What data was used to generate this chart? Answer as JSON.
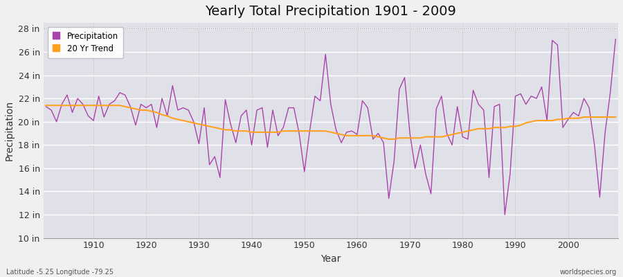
{
  "title": "Yearly Total Precipitation 1901 - 2009",
  "xlabel": "Year",
  "ylabel": "Precipitation",
  "years": [
    1901,
    1902,
    1903,
    1904,
    1905,
    1906,
    1907,
    1908,
    1909,
    1910,
    1911,
    1912,
    1913,
    1914,
    1915,
    1916,
    1917,
    1918,
    1919,
    1920,
    1921,
    1922,
    1923,
    1924,
    1925,
    1926,
    1927,
    1928,
    1929,
    1930,
    1931,
    1932,
    1933,
    1934,
    1935,
    1936,
    1937,
    1938,
    1939,
    1940,
    1941,
    1942,
    1943,
    1944,
    1945,
    1946,
    1947,
    1948,
    1949,
    1950,
    1951,
    1952,
    1953,
    1954,
    1955,
    1956,
    1957,
    1958,
    1959,
    1960,
    1961,
    1962,
    1963,
    1964,
    1965,
    1966,
    1967,
    1968,
    1969,
    1970,
    1971,
    1972,
    1973,
    1974,
    1975,
    1976,
    1977,
    1978,
    1979,
    1980,
    1981,
    1982,
    1983,
    1984,
    1985,
    1986,
    1987,
    1988,
    1989,
    1990,
    1991,
    1992,
    1993,
    1994,
    1995,
    1996,
    1997,
    1998,
    1999,
    2000,
    2001,
    2002,
    2003,
    2004,
    2005,
    2006,
    2007,
    2008,
    2009
  ],
  "precip": [
    21.3,
    21.0,
    20.0,
    21.5,
    22.3,
    20.8,
    22.0,
    21.5,
    20.5,
    20.1,
    22.2,
    20.4,
    21.5,
    21.8,
    22.5,
    22.3,
    21.3,
    19.7,
    21.5,
    21.2,
    21.5,
    19.5,
    22.0,
    20.5,
    23.1,
    21.0,
    21.2,
    21.0,
    20.0,
    18.1,
    21.2,
    16.3,
    17.0,
    15.2,
    21.9,
    19.8,
    18.2,
    20.5,
    21.0,
    18.0,
    21.0,
    21.2,
    17.8,
    21.0,
    18.8,
    19.5,
    21.2,
    21.2,
    19.0,
    15.7,
    19.2,
    22.2,
    21.8,
    25.8,
    21.5,
    19.3,
    18.2,
    19.1,
    19.2,
    18.9,
    21.8,
    21.2,
    18.5,
    19.0,
    18.2,
    13.4,
    16.6,
    22.8,
    23.8,
    19.0,
    16.0,
    18.0,
    15.5,
    13.8,
    21.1,
    22.2,
    19.0,
    18.0,
    21.3,
    18.7,
    18.5,
    22.7,
    21.5,
    21.0,
    15.2,
    21.3,
    21.5,
    12.0,
    15.5,
    22.2,
    22.4,
    21.5,
    22.2,
    22.0,
    23.0,
    20.1,
    27.0,
    26.6,
    19.5,
    20.2,
    20.8,
    20.5,
    22.0,
    21.2,
    18.0,
    13.5,
    19.0,
    22.5,
    27.1
  ],
  "trend": [
    21.4,
    21.4,
    21.4,
    21.4,
    21.4,
    21.4,
    21.4,
    21.4,
    21.4,
    21.4,
    21.4,
    21.4,
    21.4,
    21.4,
    21.4,
    21.3,
    21.2,
    21.1,
    21.0,
    21.0,
    20.9,
    20.8,
    20.6,
    20.5,
    20.3,
    20.2,
    20.1,
    20.0,
    19.9,
    19.8,
    19.7,
    19.6,
    19.5,
    19.4,
    19.3,
    19.3,
    19.2,
    19.2,
    19.2,
    19.1,
    19.1,
    19.1,
    19.1,
    19.1,
    19.1,
    19.2,
    19.2,
    19.2,
    19.2,
    19.2,
    19.2,
    19.2,
    19.2,
    19.2,
    19.1,
    19.0,
    18.9,
    18.8,
    18.8,
    18.8,
    18.8,
    18.8,
    18.8,
    18.7,
    18.6,
    18.5,
    18.5,
    18.6,
    18.6,
    18.6,
    18.6,
    18.6,
    18.7,
    18.7,
    18.7,
    18.7,
    18.8,
    18.9,
    19.0,
    19.1,
    19.2,
    19.3,
    19.4,
    19.4,
    19.4,
    19.5,
    19.5,
    19.5,
    19.6,
    19.6,
    19.7,
    19.9,
    20.0,
    20.1,
    20.1,
    20.1,
    20.1,
    20.2,
    20.2,
    20.3,
    20.3,
    20.3,
    20.4,
    20.4,
    20.4,
    20.4,
    20.4,
    20.4,
    20.4
  ],
  "precip_color": "#AA44AA",
  "trend_color": "#FFA020",
  "fig_bg_color": "#F0F0F0",
  "plot_bg_color": "#E0E0E8",
  "hgrid_color": "#FFFFFF",
  "vgrid_color": "#CCCCCC",
  "title_fontsize": 14,
  "axis_label_fontsize": 10,
  "tick_fontsize": 9,
  "ylim": [
    10,
    28.5
  ],
  "yticks": [
    10,
    12,
    14,
    16,
    18,
    20,
    22,
    24,
    26,
    28
  ],
  "xticks": [
    1910,
    1920,
    1930,
    1940,
    1950,
    1960,
    1970,
    1980,
    1990,
    2000
  ],
  "footnote_left": "Latitude -5.25 Longitude -79.25",
  "footnote_right": "worldspecies.org"
}
